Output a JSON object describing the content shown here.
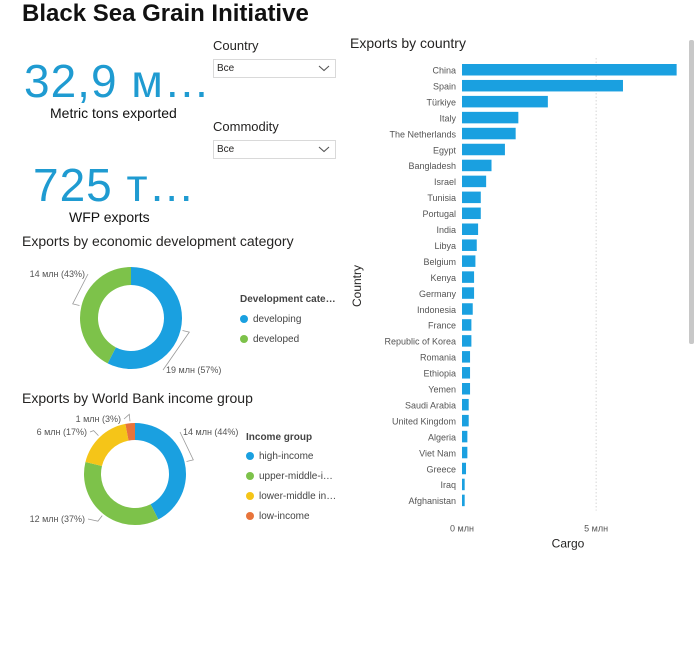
{
  "title": "Black Sea Grain Initiative",
  "kpis": [
    {
      "value": "32,9 м…",
      "label": "Metric tons exported"
    },
    {
      "value": "725 т…",
      "label": "WFP exports"
    }
  ],
  "slicers": [
    {
      "label": "Country",
      "value": "Все",
      "icon": "chevron-down-icon"
    },
    {
      "label": "Commodity",
      "value": "Все",
      "icon": "chevron-down-icon"
    }
  ],
  "colors": {
    "accent": "#1f9bd1",
    "bar": "#1aa0e0",
    "developing": "#1aa0e0",
    "developed": "#7dc24a",
    "high_income": "#1aa0e0",
    "upper_middle": "#7dc24a",
    "lower_middle": "#f5c518",
    "low_income": "#e8743b"
  },
  "chart_data": [
    {
      "type": "bar",
      "orientation": "horizontal",
      "title": "Exports by country",
      "xlabel": "Cargo",
      "ylabel": "Country",
      "x_ticks": [
        "0 млн",
        "5 млн"
      ],
      "xlim": [
        0,
        8.2
      ],
      "grid": true,
      "categories": [
        "China",
        "Spain",
        "Türkiye",
        "Italy",
        "The Netherlands",
        "Egypt",
        "Bangladesh",
        "Israel",
        "Tunisia",
        "Portugal",
        "India",
        "Libya",
        "Belgium",
        "Kenya",
        "Germany",
        "Indonesia",
        "France",
        "Republic of Korea",
        "Romania",
        "Ethiopia",
        "Yemen",
        "Saudi Arabia",
        "United Kingdom",
        "Algeria",
        "Viet Nam",
        "Greece",
        "Iraq",
        "Afghanistan"
      ],
      "values": [
        8.0,
        6.0,
        3.2,
        2.1,
        2.0,
        1.6,
        1.1,
        0.9,
        0.7,
        0.7,
        0.6,
        0.55,
        0.5,
        0.45,
        0.45,
        0.4,
        0.35,
        0.35,
        0.3,
        0.3,
        0.3,
        0.25,
        0.25,
        0.2,
        0.2,
        0.15,
        0.1,
        0.1
      ]
    },
    {
      "type": "pie",
      "style": "donut",
      "title": "Exports by economic development category",
      "legend_title": "Development cate…",
      "legend_position": "right",
      "slices": [
        {
          "name": "developing",
          "value": 19,
          "label": "19 млн (57%)",
          "color": "#1aa0e0"
        },
        {
          "name": "developed",
          "value": 14,
          "label": "14 млн (43%)",
          "color": "#7dc24a"
        }
      ]
    },
    {
      "type": "pie",
      "style": "donut",
      "title": "Exports by World Bank income group",
      "legend_title": "Income group",
      "legend_position": "right",
      "slices": [
        {
          "name": "high-income",
          "value": 14,
          "label": "14 млн (44%)",
          "color": "#1aa0e0"
        },
        {
          "name": "upper-middle-i…",
          "value": 12,
          "label": "12 млн (37%)",
          "color": "#7dc24a"
        },
        {
          "name": "lower-middle in…",
          "value": 6,
          "label": "6 млн (17%)",
          "color": "#f5c518"
        },
        {
          "name": "low-income",
          "value": 1,
          "label": "1 млн (3%)",
          "color": "#e8743b"
        }
      ]
    }
  ]
}
